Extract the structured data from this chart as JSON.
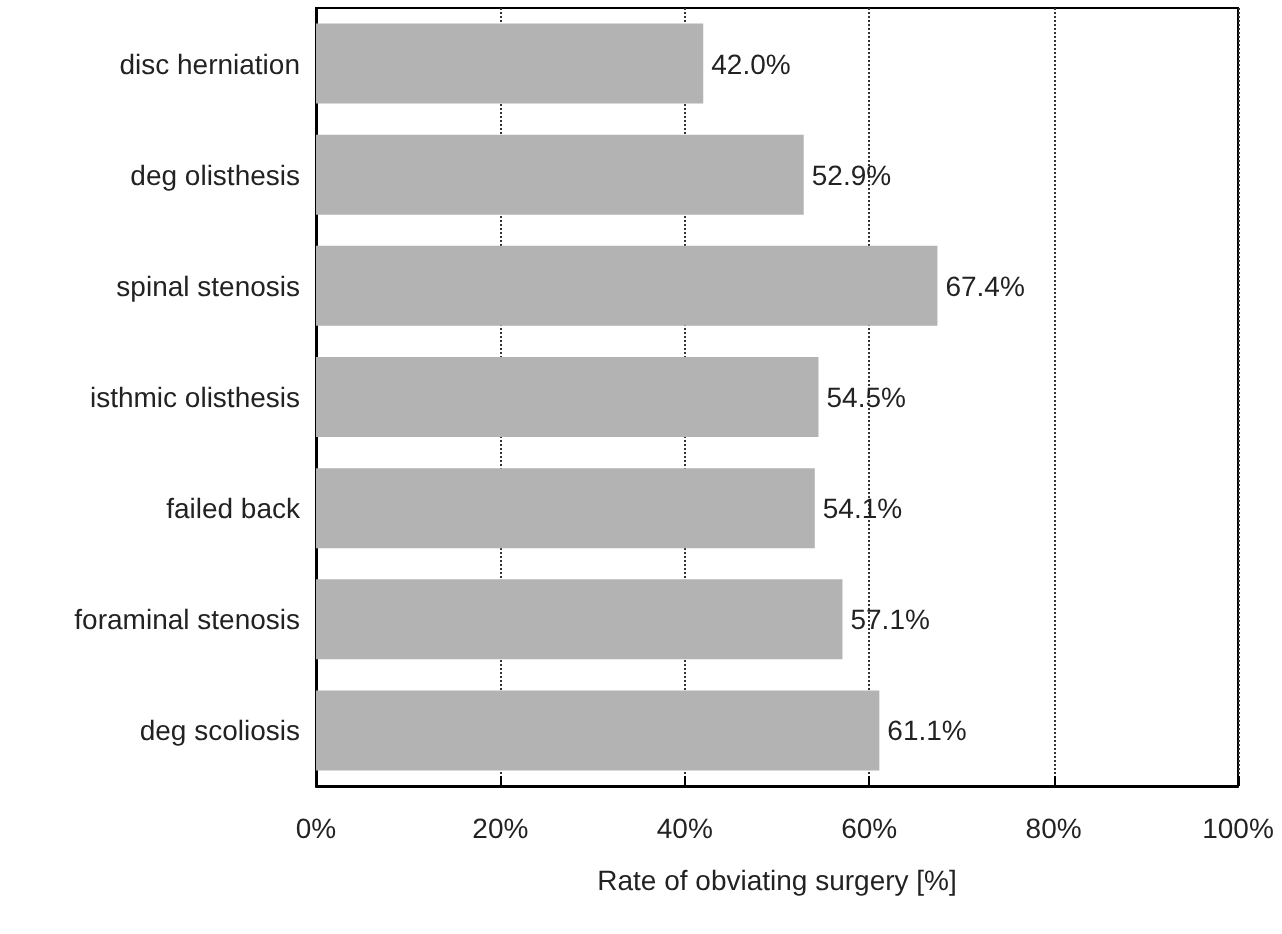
{
  "chart_data": {
    "type": "bar",
    "orientation": "horizontal",
    "xlabel": "Rate of obviating surgery [%]",
    "categories": [
      "disc herniation",
      "deg olisthesis",
      "spinal stenosis",
      "isthmic olisthesis",
      "failed back",
      "foraminal stenosis",
      "deg scoliosis"
    ],
    "values": [
      42.0,
      52.9,
      67.4,
      54.5,
      54.1,
      57.1,
      61.1
    ],
    "value_labels": [
      "42.0%",
      "52.9%",
      "67.4%",
      "54.5%",
      "54.1%",
      "57.1%",
      "61.1%"
    ],
    "color": "#b3b3b3",
    "xlim": [
      0,
      100
    ],
    "xticks": [
      {
        "value": 0,
        "label": "0%"
      },
      {
        "value": 20,
        "label": "20%"
      },
      {
        "value": 40,
        "label": "40%"
      },
      {
        "value": 60,
        "label": "60%"
      },
      {
        "value": 80,
        "label": "80%"
      },
      {
        "value": 100,
        "label": "100%"
      }
    ],
    "grid": "x"
  }
}
